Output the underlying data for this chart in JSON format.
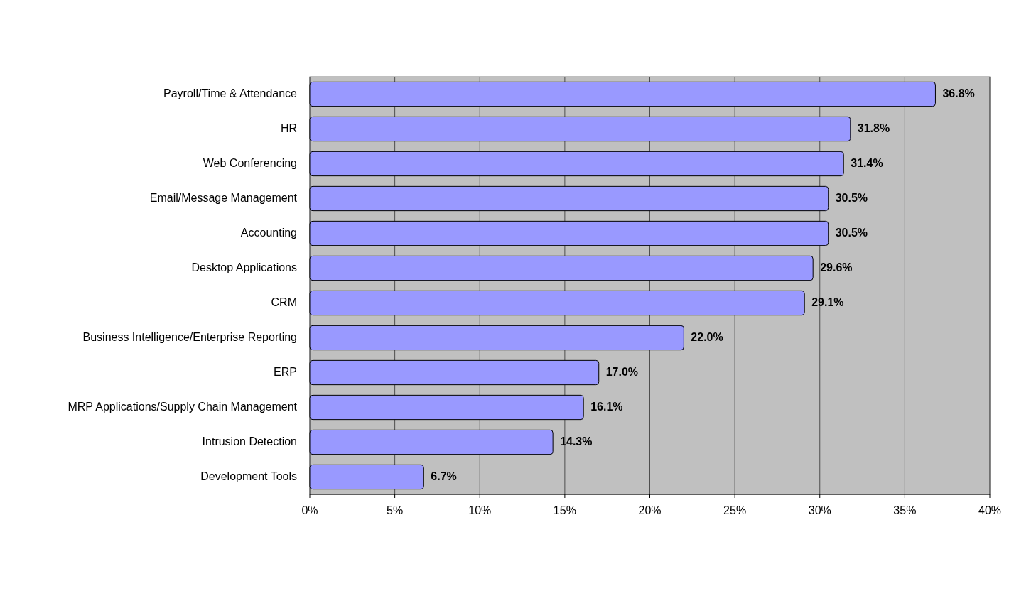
{
  "chart_data": {
    "type": "bar",
    "orientation": "horizontal",
    "categories": [
      "Payroll/Time & Attendance",
      "HR",
      "Web Conferencing",
      "Email/Message Management",
      "Accounting",
      "Desktop Applications",
      "CRM",
      "Business Intelligence/Enterprise Reporting",
      "ERP",
      "MRP Applications/Supply Chain Management",
      "Intrusion Detection",
      "Development Tools"
    ],
    "values": [
      36.8,
      31.8,
      31.4,
      30.5,
      30.5,
      29.6,
      29.1,
      22.0,
      17.0,
      16.1,
      14.3,
      6.7
    ],
    "value_labels": [
      "36.8%",
      "31.8%",
      "31.4%",
      "30.5%",
      "30.5%",
      "29.6%",
      "29.1%",
      "22.0%",
      "17.0%",
      "16.1%",
      "14.3%",
      "6.7%"
    ],
    "color": "#9999ff",
    "xlim": [
      0,
      40
    ],
    "xticks": [
      {
        "value": 0,
        "label": "0%"
      },
      {
        "value": 5,
        "label": "5%"
      },
      {
        "value": 10,
        "label": "10%"
      },
      {
        "value": 15,
        "label": "15%"
      },
      {
        "value": 20,
        "label": "20%"
      },
      {
        "value": 25,
        "label": "25%"
      },
      {
        "value": 30,
        "label": "30%"
      },
      {
        "value": 35,
        "label": "35%"
      },
      {
        "value": 40,
        "label": "40%"
      }
    ],
    "grid": "x"
  }
}
